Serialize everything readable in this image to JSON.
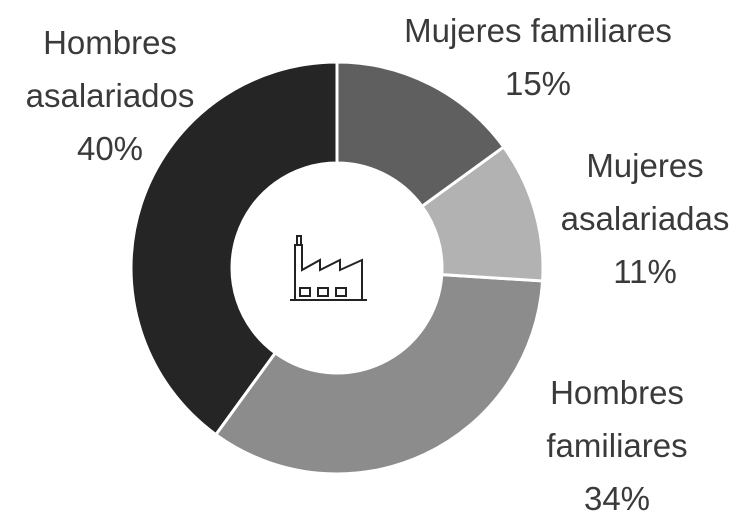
{
  "chart_data": {
    "type": "donut",
    "categories": [
      "Mujeres familiares",
      "Mujeres asalariadas",
      "Hombres familiares",
      "Hombres asalariados"
    ],
    "values": [
      15,
      11,
      34,
      40
    ],
    "value_labels": [
      "15%",
      "11%",
      "34%",
      "40%"
    ],
    "colors": [
      "#5f5f5f",
      "#b2b2b2",
      "#8c8c8c",
      "#252525"
    ]
  }
}
